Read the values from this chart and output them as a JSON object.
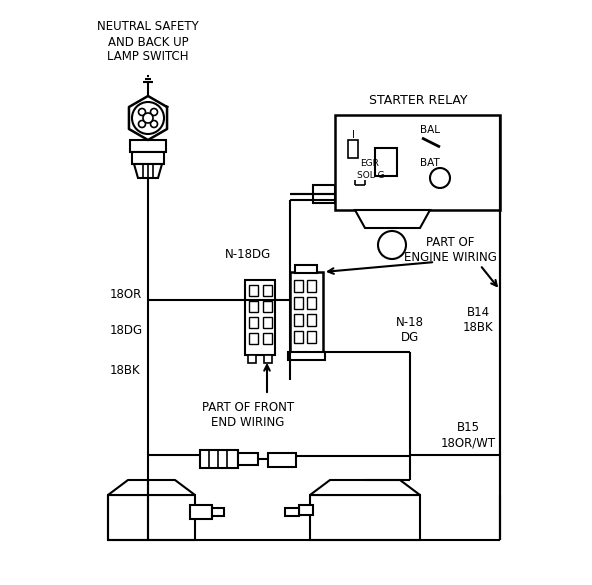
{
  "bg_color": "#ffffff",
  "line_color": "#000000",
  "text_color": "#000000",
  "labels": {
    "neutral_safety": "NEUTRAL SAFETY\nAND BACK UP\nLAMP SWITCH",
    "starter_relay": "STARTER RELAY",
    "n18dg_top": "N-18DG",
    "part_engine": "PART OF\nENGINE WIRING",
    "18or": "18OR",
    "18dg": "18DG",
    "18bbk": "18BK",
    "part_front": "PART OF FRONT\nEND WIRING",
    "n18_dg": "N-18\nDG",
    "b14_18bk": "B14\n18BK",
    "b15_18or": "B15\n18OR/WT",
    "egr": "EGR",
    "sol_g": "SOL G",
    "bal": "BAL",
    "bat": "BAT",
    "i": "I"
  }
}
